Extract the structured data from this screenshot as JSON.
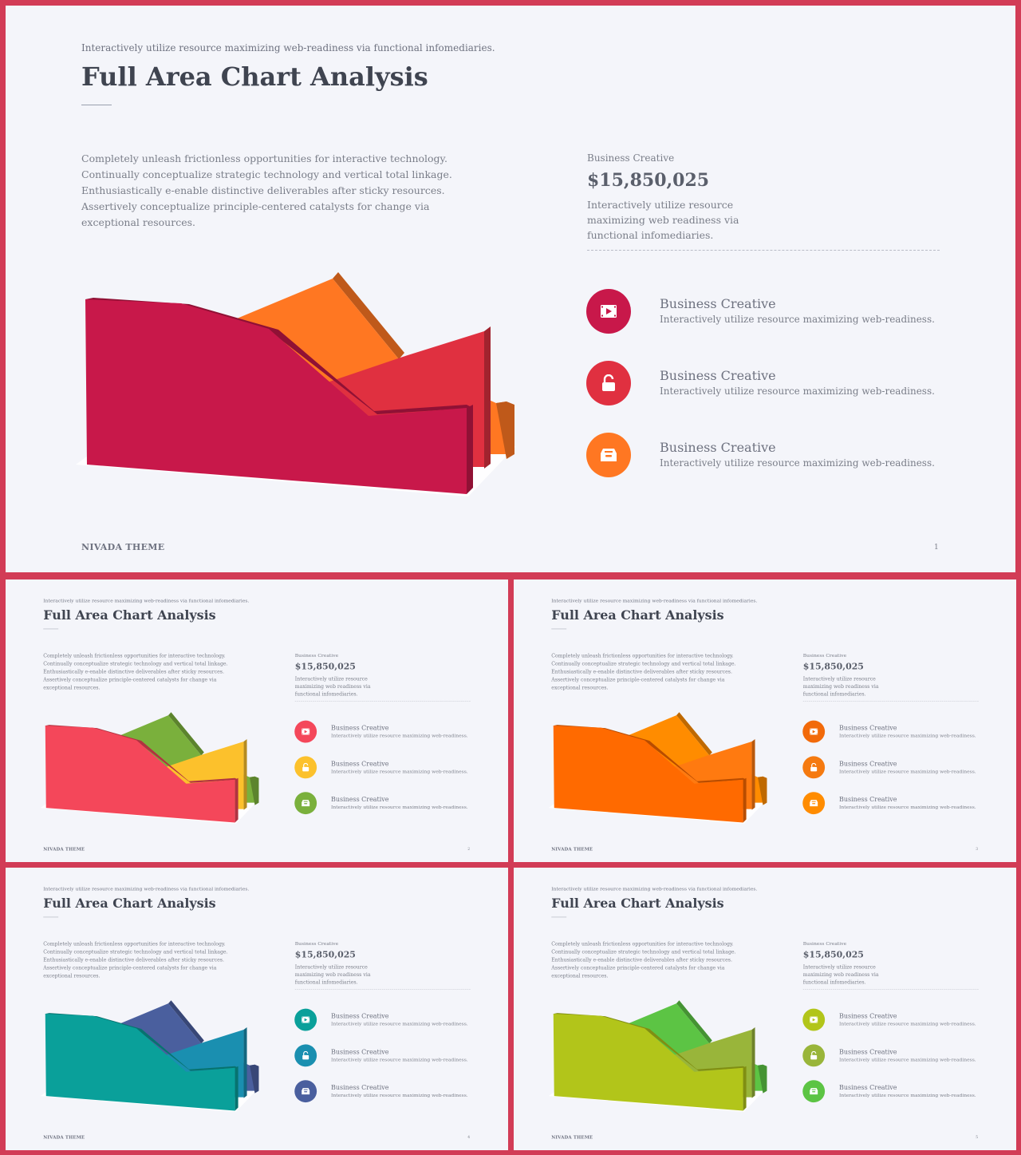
{
  "slides": [
    {
      "subtitle": "Interactively utilize resource maximizing web-readiness via functional infomediaries.",
      "title": "Full Area Chart Analysis",
      "body": "Completely unleash frictionless opportunities for interactive technology. Continually conceptualize strategic technology and vertical total linkage. Enthusiastically e-enable distinctive deliverables after sticky resources. Assertively conceptualize principle-centered catalysts for change via exceptional resources.",
      "stat_label": "Business Creative",
      "stat_value": "$15,850,025",
      "stat_desc": "Interactively utilize resource maximizing web readiness via functional infomediaries.",
      "features": [
        {
          "title": "Business Creative",
          "desc": "Interactively utilize resource maximizing web-readiness.",
          "icon": "film-icon"
        },
        {
          "title": "Business Creative",
          "desc": "Interactively utilize resource maximizing web-readiness.",
          "icon": "unlock-icon"
        },
        {
          "title": "Business Creative",
          "desc": "Interactively utilize resource maximizing web-readiness.",
          "icon": "inbox-icon"
        }
      ],
      "footer": "NIVADA THEME",
      "page": "1",
      "colors": {
        "front": "#c8184a",
        "mid": "#e03040",
        "back": "#ff7722",
        "icons": [
          "#c8184a",
          "#e03040",
          "#ff7722"
        ]
      }
    },
    {
      "subtitle": "Interactively utilize resource maximizing web-readiness via functional infomediaries.",
      "title": "Full Area Chart Analysis",
      "body": "Completely unleash frictionless opportunities for interactive technology. Continually conceptualize strategic technology and vertical total linkage. Enthusiastically e-enable distinctive deliverables after sticky resources. Assertively conceptualize principle-centered catalysts for change via exceptional resources.",
      "stat_label": "Business Creative",
      "stat_value": "$15,850,025",
      "stat_desc": "Interactively utilize resource maximizing web readiness via functional infomediaries.",
      "features": [
        {
          "title": "Business Creative",
          "desc": "Interactively utilize resource maximizing web-readiness.",
          "icon": "film-icon"
        },
        {
          "title": "Business Creative",
          "desc": "Interactively utilize resource maximizing web-readiness.",
          "icon": "unlock-icon"
        },
        {
          "title": "Business Creative",
          "desc": "Interactively utilize resource maximizing web-readiness.",
          "icon": "inbox-icon"
        }
      ],
      "footer": "NIVADA THEME",
      "page": "2",
      "colors": {
        "front": "#f4475a",
        "mid": "#fcc12c",
        "back": "#7ab03c",
        "icons": [
          "#f4475a",
          "#fcc12c",
          "#7ab03c"
        ]
      }
    },
    {
      "subtitle": "Interactively utilize resource maximizing web-readiness via functional infomediaries.",
      "title": "Full Area Chart Analysis",
      "body": "Completely unleash frictionless opportunities for interactive technology. Continually conceptualize strategic technology and vertical total linkage. Enthusiastically e-enable distinctive deliverables after sticky resources. Assertively conceptualize principle-centered catalysts for change via exceptional resources.",
      "stat_label": "Business Creative",
      "stat_value": "$15,850,025",
      "stat_desc": "Interactively utilize resource maximizing web readiness via functional infomediaries.",
      "features": [
        {
          "title": "Business Creative",
          "desc": "Interactively utilize resource maximizing web-readiness.",
          "icon": "film-icon"
        },
        {
          "title": "Business Creative",
          "desc": "Interactively utilize resource maximizing web-readiness.",
          "icon": "unlock-icon"
        },
        {
          "title": "Business Creative",
          "desc": "Interactively utilize resource maximizing web-readiness.",
          "icon": "inbox-icon"
        }
      ],
      "footer": "NIVADA THEME",
      "page": "3",
      "colors": {
        "front": "#ff6a00",
        "mid": "#ff7a10",
        "back": "#ff8c00",
        "icons": [
          "#f26a0a",
          "#f57a10",
          "#ff8c00"
        ]
      }
    },
    {
      "subtitle": "Interactively utilize resource maximizing web-readiness via functional infomediaries.",
      "title": "Full Area Chart Analysis",
      "body": "Completely unleash frictionless opportunities for interactive technology. Continually conceptualize strategic technology and vertical total linkage. Enthusiastically e-enable distinctive deliverables after sticky resources. Assertively conceptualize principle-centered catalysts for change via exceptional resources.",
      "stat_label": "Business Creative",
      "stat_value": "$15,850,025",
      "stat_desc": "Interactively utilize resource maximizing web readiness via functional infomediaries.",
      "features": [
        {
          "title": "Business Creative",
          "desc": "Interactively utilize resource maximizing web-readiness.",
          "icon": "film-icon"
        },
        {
          "title": "Business Creative",
          "desc": "Interactively utilize resource maximizing web-readiness.",
          "icon": "unlock-icon"
        },
        {
          "title": "Business Creative",
          "desc": "Interactively utilize resource maximizing web-readiness.",
          "icon": "inbox-icon"
        }
      ],
      "footer": "NIVADA THEME",
      "page": "4",
      "colors": {
        "front": "#0aa09a",
        "mid": "#1a8fb0",
        "back": "#4a5f9e",
        "icons": [
          "#0aa09a",
          "#1a8fb0",
          "#4a5f9e"
        ]
      }
    },
    {
      "subtitle": "Interactively utilize resource maximizing web-readiness via functional infomediaries.",
      "title": "Full Area Chart Analysis",
      "body": "Completely unleash frictionless opportunities for interactive technology. Continually conceptualize strategic technology and vertical total linkage. Enthusiastically e-enable distinctive deliverables after sticky resources. Assertively conceptualize principle-centered catalysts for change via exceptional resources.",
      "stat_label": "Business Creative",
      "stat_value": "$15,850,025",
      "stat_desc": "Interactively utilize resource maximizing web readiness via functional infomediaries.",
      "features": [
        {
          "title": "Business Creative",
          "desc": "Interactively utilize resource maximizing web-readiness.",
          "icon": "film-icon"
        },
        {
          "title": "Business Creative",
          "desc": "Interactively utilize resource maximizing web-readiness.",
          "icon": "unlock-icon"
        },
        {
          "title": "Business Creative",
          "desc": "Interactively utilize resource maximizing web-readiness.",
          "icon": "inbox-icon"
        }
      ],
      "footer": "NIVADA THEME",
      "page": "5",
      "colors": {
        "front": "#b2c51a",
        "mid": "#99b53a",
        "back": "#5cc444",
        "icons": [
          "#b2c51a",
          "#99b53a",
          "#5cc444"
        ]
      }
    }
  ]
}
